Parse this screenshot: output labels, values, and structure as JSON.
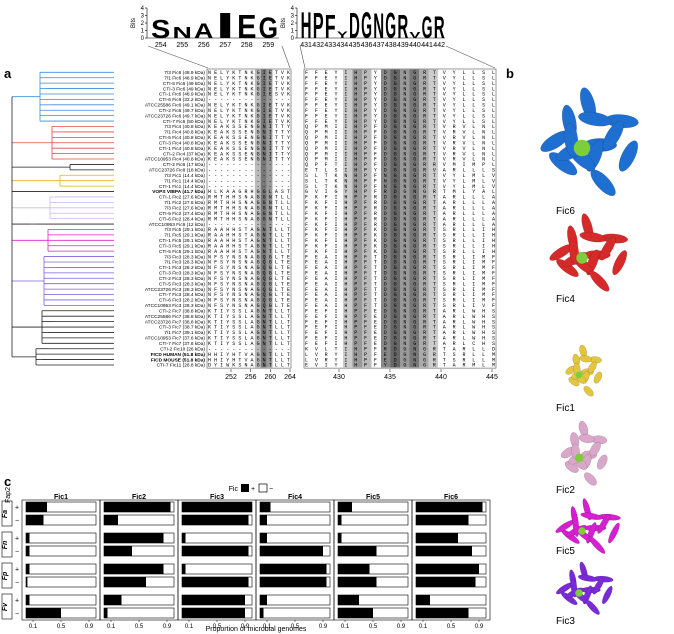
{
  "panel_a": {
    "label": "a",
    "logo_left": {
      "y_title": "Bits",
      "yticks": [
        0,
        1,
        2,
        3,
        4
      ],
      "positions": [
        254,
        255,
        256,
        257,
        258,
        259
      ],
      "letters": [
        "S",
        "N",
        "A",
        "I",
        "E",
        "G"
      ],
      "bits": [
        2.5,
        1.5,
        2.0,
        3.5,
        3.2,
        2.8
      ]
    },
    "logo_right": {
      "y_title": "Bits",
      "yticks": [
        0,
        1,
        2,
        3,
        4
      ],
      "positions": [
        431,
        432,
        433,
        434,
        435,
        436,
        437,
        438,
        439,
        440,
        441,
        442
      ],
      "letters": [
        "H",
        "P",
        "F",
        "Y",
        "D",
        "G",
        "N",
        "G",
        "R",
        "V",
        "G",
        "R"
      ],
      "bits": [
        3.6,
        3.5,
        3.2,
        0.9,
        3.5,
        3.6,
        3.4,
        3.5,
        3.2,
        0.8,
        3.0,
        3.0
      ]
    },
    "left_ticks": [
      252,
      256,
      260,
      264
    ],
    "right_ticks": [
      430,
      435,
      440,
      445
    ],
    "rows": [
      {
        "label": "7/3 Fic6 (48.9 kDa)",
        "left": "NELYKTNKGIETVK",
        "right": "FFEYIHPYDGNGRTVYLLSL"
      },
      {
        "label": "7/1 Fic6 (48.9 kDa)",
        "left": "NELYKTNKGIETVK",
        "right": "FFEYIHPYDGNGRTVYLLSL"
      },
      {
        "label": "CTI-5 Fic6 (49 kDa)",
        "left": "NELYKTNKGIETVK",
        "right": "FFEYIHPYDGNGRTVYLLSL"
      },
      {
        "label": "CTI-3 Fic6 (49 kDa)",
        "left": "NELYKTNKGIETVK",
        "right": "FFEYIHPYDGNGRTVYLLSL"
      },
      {
        "label": "CTI-1 Fic6 (48.9 kDa)",
        "left": "NELYKTNKGIESVK",
        "right": "FFEYIHPYDGNGRTVYLLSL"
      },
      {
        "label": "CTI-6 Fic6 (32.2 kDa)",
        "left": "--------------",
        "right": "FFEYIHPYDGNGRTVYLLSL"
      },
      {
        "label": "ATCC25586 Fic6 (49.1 kDa)",
        "left": "NELYKTNKGIETVK",
        "right": "FFEYIHPYDGNGRTVYLLSL"
      },
      {
        "label": "CTI-2 Fic6 (49.7 kDa)",
        "left": "NELYKTNKGIETVK",
        "right": "FFEYIHPYDGNGRTVYLLSL"
      },
      {
        "label": "ATCC23726 Fic6 (49.7 kDa)",
        "left": "NELYKTNKGIETVK",
        "right": "FFEYIHPYDGNGRTVYLLSL"
      },
      {
        "label": "CTI-7 Fic6 (50 kDa)",
        "left": "NELYKTNKGIETVK",
        "right": "FFEYIHPYDGNGRTVYLLSL"
      },
      {
        "label": "7/3 Fic4 (40.8 kDa)",
        "left": "KEAKSSENGNITTY",
        "right": "QPMIIHPFDGNGRTVRVLNL"
      },
      {
        "label": "7/1 Fic4 (40.8 kDa)",
        "left": "KEAKSSENGNITTY",
        "right": "QPMIIHPFDGNGRTVRVLNL"
      },
      {
        "label": "CTI-5 Fic4 (40.8 kDa)",
        "left": "KEAKSSENGNITTY",
        "right": "QPMIIHPFDGNGRTVRVLNL"
      },
      {
        "label": "CTI-3 Fic4 (40.8 kDa)",
        "left": "KEAKSSENGNITTY",
        "right": "QPMIIHPFDGNGRTVRVLNL"
      },
      {
        "label": "CTI-1 Fic4 (40.8 kDa)",
        "left": "KEAKSSENGNITTY",
        "right": "QPMIIHPFDGNGRTVRVLNL"
      },
      {
        "label": "CTI-2 Fic4 (37 kDa)",
        "left": "KEAKSSENGNITTY",
        "right": "QPMIIHPFDGNGRTVRVLNL"
      },
      {
        "label": "ATCC10953 Fic4 (40.8 kDa)",
        "left": "KEAKSSENGNITTY",
        "right": "QPMIIHPFDGNGRTVRVLNL"
      },
      {
        "label": "CTI-2 Fic6 (17 kDa)",
        "left": "--------------",
        "right": "QPFTIHPFDGNGRRVMIMPL"
      },
      {
        "label": "ATCC23726 Fic8 (18 kDa)",
        "left": "--------------",
        "right": "ETLSIHPYDGNGRVARLLLS"
      },
      {
        "label": "7/3 Fic1 (14.4 kDa)",
        "left": "--------------",
        "right": "SLTKNHPFNGNGRTVYLMLV"
      },
      {
        "label": "7/1 Fic1 (14.4 kDa)",
        "left": "--------------",
        "right": "SLTKNHPFNGNGRTVYLMLV"
      },
      {
        "label": "CTI-1 Fic1 (14.4 kDa)",
        "left": "--------------",
        "right": "SLTKNHPFNGNGRTVYLMLV"
      },
      {
        "label": "VOPS VIBPA (41.7 kDa)",
        "left": "HLKAAGRHGGLAST",
        "right": "GVIGYHPFRDGNGRTMLYAL",
        "emphasis": true
      },
      {
        "label": "CTI-1 Fic2 (27.6 kDa)",
        "left": "RMTHHSNAGGNTLL",
        "right": "FKFIHPFRDGNGRTARLLLA"
      },
      {
        "label": "7/1 Fic2 (27.6 kDa)",
        "left": "RMTHHSNAGGNTLL",
        "right": "FKFIHPFRDGNGRTARLLLA"
      },
      {
        "label": "7/3 Fic2 (27.6 kDa)",
        "left": "RMTHHSNAGGNTLL",
        "right": "FKFIHPFRDGNGRTARLLLA"
      },
      {
        "label": "CTI-5 Fic2 (27.4 kDa)",
        "left": "RMTHHSNAGGNTLL",
        "right": "FKFIHPFRDGNGRTARLLLA"
      },
      {
        "label": "CTI-6 Fic2 (28.4 kDa)",
        "left": "RMTHHSNAGGNTLL",
        "right": "FKFIHPFRDGNGRTARLLLA"
      },
      {
        "label": "ATCC10953 Fic9 (12 kDa)",
        "left": "--------------",
        "right": "FKFIHPFRDGNGRTARLLLA"
      },
      {
        "label": "7/3 Fic5 (29.1 kDa)",
        "left": "RAAHHSTAGNTLLT",
        "right": "FKFIHPFKDGNGRTSRLLIH"
      },
      {
        "label": "7/1 Fic5 (29.1 kDa)",
        "left": "RAAHHSTAGNTLLT",
        "right": "FKFIHPFKDGNGRTSRLLIH"
      },
      {
        "label": "CTI-1 Fic5 (29.1 kDa)",
        "left": "RAAHHSTAGNTLLT",
        "right": "FKFIHPFKDGNGRTSRLLIH"
      },
      {
        "label": "CTI-3 Fic5 (29.1 kDa)",
        "left": "RAAHHSTAGNTLLT",
        "right": "FKFIHPFKDGNGRTSRLLIH"
      },
      {
        "label": "CTI-5 Fic5 (29.1 kDa)",
        "left": "RAAHHSTAGNTLLT",
        "right": "FKFIHPFKDGNGRTSRLLIH"
      },
      {
        "label": "7/3 Fic3 (28.3 kDa)",
        "left": "NFSYNSNAGQGLTE",
        "right": "FEAIHPFTDGNGRTSRLIMF"
      },
      {
        "label": "7/1 Fic3 (28.3 kDa)",
        "left": "NFSYNSNAGQGLTE",
        "right": "FEAIHPFTDGNGRTSRLIMF"
      },
      {
        "label": "CTI-1 Fic3 (28.3 kDa)",
        "left": "NFSYNSNAGQGLTE",
        "right": "FEAIHPFTDGNGRTSRLIMF"
      },
      {
        "label": "CTI-3 Fic3 (28.3 kDa)",
        "left": "NFSYNSNAGQGLTE",
        "right": "FEAIHPFTDGNGRTSRLIMF"
      },
      {
        "label": "CTI-2 Fic3 (28.3 kDa)",
        "left": "NFSYNSNAGQGLTE",
        "right": "FEAIHPFTDGNGRTSRLIMF"
      },
      {
        "label": "CTI-5 Fic3 (28.3 kDa)",
        "left": "NFSYNSNAGQGLTE",
        "right": "FEAIHPFTDGNGRTSRLIMF"
      },
      {
        "label": "ATCC23726 Fic3 (28.3 kDa)",
        "left": "NFSYNSNAGQGLTE",
        "right": "FEAIHPFTDGNGRTSRLIMF"
      },
      {
        "label": "CTI-7 Fic3 (28.4 kDa)",
        "left": "NFSYNSNAGQGLTE",
        "right": "FEAIHPFTDGNGRTSRLIMF"
      },
      {
        "label": "CTI-6 Fic3 (28.2 kDa)",
        "left": "NFSYNSNAGQGLTE",
        "right": "FEAIHPFTDGNGRTSRLIMF"
      },
      {
        "label": "ATCC10953 Fic3 (28.3 kDa)",
        "left": "NFSYNSNAGQGLTE",
        "right": "FEAIHPFTDGNGRTSRLIVF"
      },
      {
        "label": "CTI-2 Fic7 (38.8 kDa)",
        "left": "KTIYSSLAGNTLLT",
        "right": "FEFIHPFEDGNGRTARLWHS"
      },
      {
        "label": "ATCC25586 Fic7 (38.8 kDa)",
        "left": "KTIYSSLAGNTLLT",
        "right": "FEFIHPFEDGNGRTARLWHS"
      },
      {
        "label": "ATCC23726 Fic7 (38.8 kDa)",
        "left": "KTIYSSLAGNTLLT",
        "right": "FEFIHPFEDGNGRTARLWHS"
      },
      {
        "label": "CTI-3 Fic7 (38.7 kDa)",
        "left": "KTIYSSLAGNTLLT",
        "right": "FEFIHPFEDGNGRTARLWHS"
      },
      {
        "label": "7/1 Fic7 (39.1 kDa)",
        "left": "KTIYSSLAGNTLLT",
        "right": "FEFIHPFEDGNGRTARLWHS"
      },
      {
        "label": "ATCC10953 Fic7 (37.6 kDa)",
        "left": "KTIYSSLAGNTLLT",
        "right": "FEFIHPFEDGNGRTARLWHS"
      },
      {
        "label": "CTI-7 Fic7 (37.6 kDa)",
        "left": "KTIYSSLAGNTLLT",
        "right": "FEFIHPFEDGNGRTARLCHS"
      },
      {
        "label": "CTI-2 Fic10 (26 kDa)",
        "left": "--------------",
        "right": "KVLTIHPFRDGNGRTARLLD"
      },
      {
        "label": "FICD HUMAN (51.8 kDa)",
        "left": "HHIYHTVAGNTLLT",
        "right": "LVRYIHPFEDGNGRTSRLLM",
        "emphasis": true
      },
      {
        "label": "FICD MOUSE (51.8 kDa)",
        "left": "HHIYHTVAGNTLLT",
        "right": "LVRYIHPFEDGNGRTSRLLM",
        "emphasis": true
      },
      {
        "label": "CTI-7 Fic11 (26.8 kDa)",
        "left": "DYIWKSNAGNTLLT",
        "right": "EVIYIHPFYDGNGRTARMLM"
      }
    ]
  },
  "panel_b": {
    "label": "b",
    "structures": [
      {
        "name": "Fic6",
        "color": "#1f6fd1"
      },
      {
        "name": "Fic4",
        "color": "#d62a2a"
      },
      {
        "name": "Fic1",
        "color": "#e3c540"
      },
      {
        "name": "Fic2",
        "color": "#d9a8c9"
      },
      {
        "name": "Fic5",
        "color": "#d51fd0"
      },
      {
        "name": "Fic3",
        "color": "#7a2bd6"
      }
    ]
  },
  "panel_c": {
    "label": "c",
    "legend_title": "Fic",
    "legend_labels": [
      "+",
      "−"
    ],
    "y_title": "Fap2",
    "groups": [
      "Fa",
      "Fn",
      "Fp",
      "Fv"
    ],
    "signs": [
      "+",
      "−"
    ],
    "x_title": "Proportion of microbial genomes",
    "xlim": [
      0,
      1
    ],
    "xticks": [
      0.1,
      0.5,
      0.9
    ],
    "columns": [
      {
        "name": "Fic1",
        "values": [
          0.3,
          0.25,
          0.05,
          0.05,
          0.05,
          0.02,
          0.05,
          0.5
        ]
      },
      {
        "name": "Fic2",
        "values": [
          0.95,
          0.2,
          0.85,
          0.4,
          0.85,
          0.6,
          0.25,
          0.05
        ]
      },
      {
        "name": "Fic3",
        "values": [
          1.0,
          0.95,
          0.05,
          0.95,
          0.05,
          0.95,
          0.9,
          0.9
        ]
      },
      {
        "name": "Fic4",
        "values": [
          0.15,
          0.1,
          0.1,
          0.9,
          0.95,
          0.95,
          0.1,
          0.05
        ]
      },
      {
        "name": "Fic5",
        "values": [
          0.2,
          0.05,
          0.05,
          0.55,
          0.45,
          0.55,
          0.3,
          0.5
        ]
      },
      {
        "name": "Fic6",
        "values": [
          0.95,
          0.75,
          0.6,
          0.8,
          0.9,
          0.85,
          0.2,
          0.75
        ]
      }
    ]
  }
}
